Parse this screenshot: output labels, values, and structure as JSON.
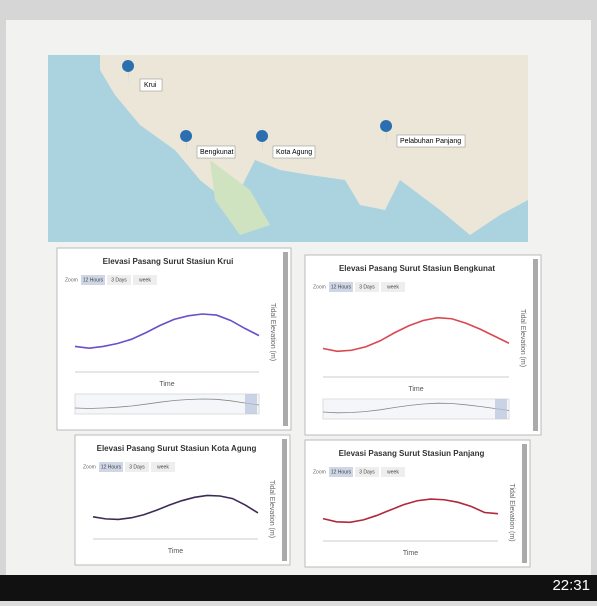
{
  "map": {
    "markers": [
      "Krui",
      "Bengkunat",
      "Kota Agung",
      "Pelabuhan Panjang"
    ]
  },
  "charts": [
    {
      "type": "line",
      "title": "Elevasi Pasang Surut Stasiun Krui",
      "zoom_label": "Zoom",
      "buttons": [
        "12 Hours",
        "3 Days",
        "week"
      ],
      "x_label": "Time",
      "y_label": "Tidal Elevation (m)",
      "color": "#6a4fc8",
      "ylim": [
        0,
        2
      ],
      "values": [
        0.6,
        0.55,
        0.6,
        0.68,
        0.8,
        0.98,
        1.18,
        1.35,
        1.45,
        1.5,
        1.47,
        1.32,
        1.1,
        0.9
      ]
    },
    {
      "type": "line",
      "title": "Elevasi Pasang Surut Stasiun Bengkunat",
      "zoom_label": "Zoom",
      "buttons": [
        "12 Hours",
        "3 Days",
        "week"
      ],
      "x_label": "Time",
      "y_label": "Tidal Elevation (m)",
      "color": "#d9474f",
      "ylim": [
        0,
        2
      ],
      "values": [
        0.7,
        0.62,
        0.65,
        0.75,
        0.92,
        1.15,
        1.35,
        1.5,
        1.58,
        1.55,
        1.42,
        1.25,
        1.05,
        0.85
      ]
    },
    {
      "type": "line",
      "title": "Elevasi Pasang Surut Stasiun Kota Agung",
      "zoom_label": "Zoom",
      "buttons": [
        "12 Hours",
        "3 Days",
        "week"
      ],
      "x_label": "Time",
      "y_label": "Tidal Elevation (m)",
      "color": "#3d2a55",
      "ylim": [
        0,
        2
      ],
      "values": [
        0.7,
        0.62,
        0.6,
        0.66,
        0.78,
        0.95,
        1.15,
        1.32,
        1.45,
        1.52,
        1.5,
        1.4,
        1.15,
        0.85
      ]
    },
    {
      "type": "line",
      "title": "Elevasi Pasang Surut Stasiun Panjang",
      "zoom_label": "Zoom",
      "buttons": [
        "12 Hours",
        "3 Days",
        "week"
      ],
      "x_label": "Time",
      "y_label": "Tidal Elevation (m)",
      "color": "#b0283a",
      "ylim": [
        0,
        2
      ],
      "values": [
        0.75,
        0.62,
        0.6,
        0.7,
        0.88,
        1.1,
        1.32,
        1.48,
        1.55,
        1.52,
        1.42,
        1.25,
        1.0,
        0.95
      ]
    }
  ],
  "status": {
    "time": "22:31"
  }
}
